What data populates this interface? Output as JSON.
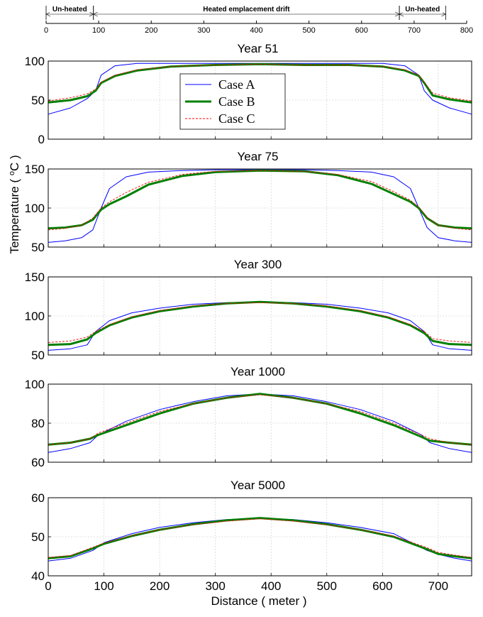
{
  "header_axis": {
    "segments": [
      {
        "label": "Un-heated",
        "from": 0,
        "to": 90
      },
      {
        "label": "Heated emplacement drift",
        "from": 90,
        "to": 672
      },
      {
        "label": "Un-heated",
        "from": 672,
        "to": 760
      }
    ],
    "xlim": [
      0,
      800
    ],
    "ticks": [
      0,
      100,
      200,
      300,
      400,
      500,
      600,
      700,
      800
    ]
  },
  "ylabel_html": "Temperature ( °C )",
  "ylabel_parts": {
    "pre": "Temperature ( ",
    "sup": "o",
    "post": "C )"
  },
  "xlabel": "Distance ( meter )",
  "legend": [
    {
      "name": "Case A",
      "color": "#0000ff",
      "style": "solid-thin"
    },
    {
      "name": "Case B",
      "color": "#008000",
      "style": "solid-thick"
    },
    {
      "name": "Case C",
      "color": "#ff0000",
      "style": "dashed"
    }
  ],
  "chart_data": [
    {
      "type": "line",
      "title": "Year 51",
      "xlim": [
        0,
        760
      ],
      "ylim": [
        0,
        100
      ],
      "yticks": [
        0,
        50,
        100
      ],
      "xticks": [
        0,
        100,
        200,
        300,
        400,
        500,
        600,
        700,
        800
      ],
      "show_xtick_labels": false,
      "grid": true,
      "x": [
        0,
        40,
        70,
        85,
        95,
        120,
        160,
        220,
        300,
        380,
        460,
        540,
        600,
        640,
        665,
        675,
        690,
        720,
        760
      ],
      "series": [
        {
          "name": "Case A",
          "values": [
            32,
            40,
            52,
            62,
            82,
            94,
            97,
            97,
            97,
            97,
            97,
            97,
            97,
            94,
            82,
            62,
            50,
            40,
            32
          ]
        },
        {
          "name": "Case B",
          "values": [
            47,
            50,
            55,
            62,
            72,
            81,
            88,
            93,
            95,
            96,
            95,
            95,
            93,
            88,
            81,
            72,
            56,
            51,
            47
          ]
        },
        {
          "name": "Case C",
          "values": [
            49,
            53,
            58,
            64,
            73,
            82,
            89,
            93,
            95,
            96,
            95,
            95,
            93,
            89,
            82,
            73,
            59,
            53,
            49
          ]
        }
      ]
    },
    {
      "type": "line",
      "title": "Year 75",
      "xlim": [
        0,
        760
      ],
      "ylim": [
        50,
        150
      ],
      "yticks": [
        50,
        100,
        150
      ],
      "xticks": [
        0,
        100,
        200,
        300,
        400,
        500,
        600,
        700,
        800
      ],
      "show_xtick_labels": false,
      "grid": true,
      "x": [
        0,
        30,
        60,
        80,
        95,
        110,
        140,
        180,
        240,
        300,
        380,
        460,
        520,
        580,
        620,
        650,
        665,
        680,
        700,
        730,
        760
      ],
      "series": [
        {
          "name": "Case A",
          "values": [
            56,
            58,
            62,
            72,
            100,
            125,
            140,
            146,
            148,
            149,
            149,
            149,
            148,
            146,
            140,
            125,
            100,
            75,
            62,
            58,
            56
          ]
        },
        {
          "name": "Case B",
          "values": [
            74,
            75,
            78,
            85,
            98,
            105,
            115,
            130,
            141,
            146,
            148,
            147,
            142,
            131,
            118,
            108,
            100,
            87,
            78,
            75,
            74
          ]
        },
        {
          "name": "Case C",
          "values": [
            72,
            74,
            78,
            87,
            100,
            108,
            120,
            133,
            143,
            147,
            148,
            147,
            143,
            134,
            121,
            110,
            101,
            88,
            78,
            74,
            72
          ]
        }
      ]
    },
    {
      "type": "line",
      "title": "Year 300",
      "xlim": [
        0,
        760
      ],
      "ylim": [
        50,
        150
      ],
      "yticks": [
        50,
        100,
        150
      ],
      "xticks": [
        0,
        100,
        200,
        300,
        400,
        500,
        600,
        700,
        800
      ],
      "show_xtick_labels": false,
      "grid": true,
      "x": [
        0,
        40,
        70,
        85,
        110,
        150,
        200,
        260,
        320,
        380,
        440,
        500,
        560,
        610,
        650,
        675,
        690,
        720,
        760
      ],
      "series": [
        {
          "name": "Case A",
          "values": [
            56,
            58,
            63,
            80,
            94,
            104,
            110,
            115,
            117,
            118,
            117,
            115,
            110,
            104,
            94,
            80,
            63,
            58,
            56
          ]
        },
        {
          "name": "Case B",
          "values": [
            63,
            64,
            70,
            78,
            88,
            98,
            106,
            112,
            116,
            118,
            116,
            112,
            106,
            98,
            88,
            78,
            68,
            64,
            63
          ]
        },
        {
          "name": "Case C",
          "values": [
            66,
            68,
            73,
            80,
            89,
            99,
            107,
            113,
            116,
            117,
            116,
            113,
            107,
            99,
            89,
            80,
            71,
            68,
            66
          ]
        }
      ]
    },
    {
      "type": "line",
      "title": "Year 1000",
      "xlim": [
        0,
        760
      ],
      "ylim": [
        60,
        100
      ],
      "yticks": [
        60,
        80,
        100
      ],
      "xticks": [
        0,
        100,
        200,
        300,
        400,
        500,
        600,
        700,
        800
      ],
      "show_xtick_labels": false,
      "grid": true,
      "x": [
        0,
        40,
        75,
        90,
        140,
        200,
        260,
        320,
        380,
        440,
        500,
        560,
        620,
        670,
        685,
        720,
        760
      ],
      "series": [
        {
          "name": "Case A",
          "values": [
            65,
            67,
            70,
            74,
            81,
            87,
            91,
            94,
            95,
            94,
            91,
            87,
            81,
            74,
            70,
            67,
            65
          ]
        },
        {
          "name": "Case B",
          "values": [
            69,
            70,
            72,
            74,
            79,
            85,
            90,
            93,
            95,
            93,
            90,
            85,
            79,
            73,
            71,
            70,
            69
          ]
        },
        {
          "name": "Case C",
          "values": [
            69,
            70,
            72,
            75,
            80,
            86,
            90,
            93,
            94.5,
            93,
            90,
            86,
            80,
            74,
            72,
            70,
            69
          ]
        }
      ]
    },
    {
      "type": "line",
      "title": "Year 5000",
      "xlim": [
        0,
        760
      ],
      "ylim": [
        40,
        60
      ],
      "yticks": [
        40,
        50,
        60
      ],
      "xticks": [
        0,
        100,
        200,
        300,
        400,
        500,
        600,
        700,
        800
      ],
      "show_xtick_labels": true,
      "grid": true,
      "x": [
        0,
        40,
        80,
        100,
        150,
        200,
        260,
        320,
        380,
        440,
        500,
        560,
        620,
        680,
        700,
        730,
        760
      ],
      "series": [
        {
          "name": "Case A",
          "values": [
            43.8,
            44.5,
            46.5,
            48.5,
            50.8,
            52.4,
            53.6,
            54.4,
            54.8,
            54.4,
            53.6,
            52.4,
            50.8,
            46.5,
            45.5,
            44.5,
            43.8
          ]
        },
        {
          "name": "Case B",
          "values": [
            44.5,
            45,
            47,
            48.2,
            50.2,
            51.8,
            53.2,
            54.2,
            54.8,
            54.2,
            53.2,
            51.8,
            50,
            46.8,
            45.6,
            45,
            44.5
          ]
        },
        {
          "name": "Case C",
          "values": [
            44.7,
            45.2,
            47.3,
            48.4,
            50.3,
            51.8,
            53.1,
            54,
            54.6,
            54,
            53.1,
            51.8,
            50.2,
            47.2,
            46,
            45.3,
            44.7
          ]
        }
      ]
    }
  ]
}
